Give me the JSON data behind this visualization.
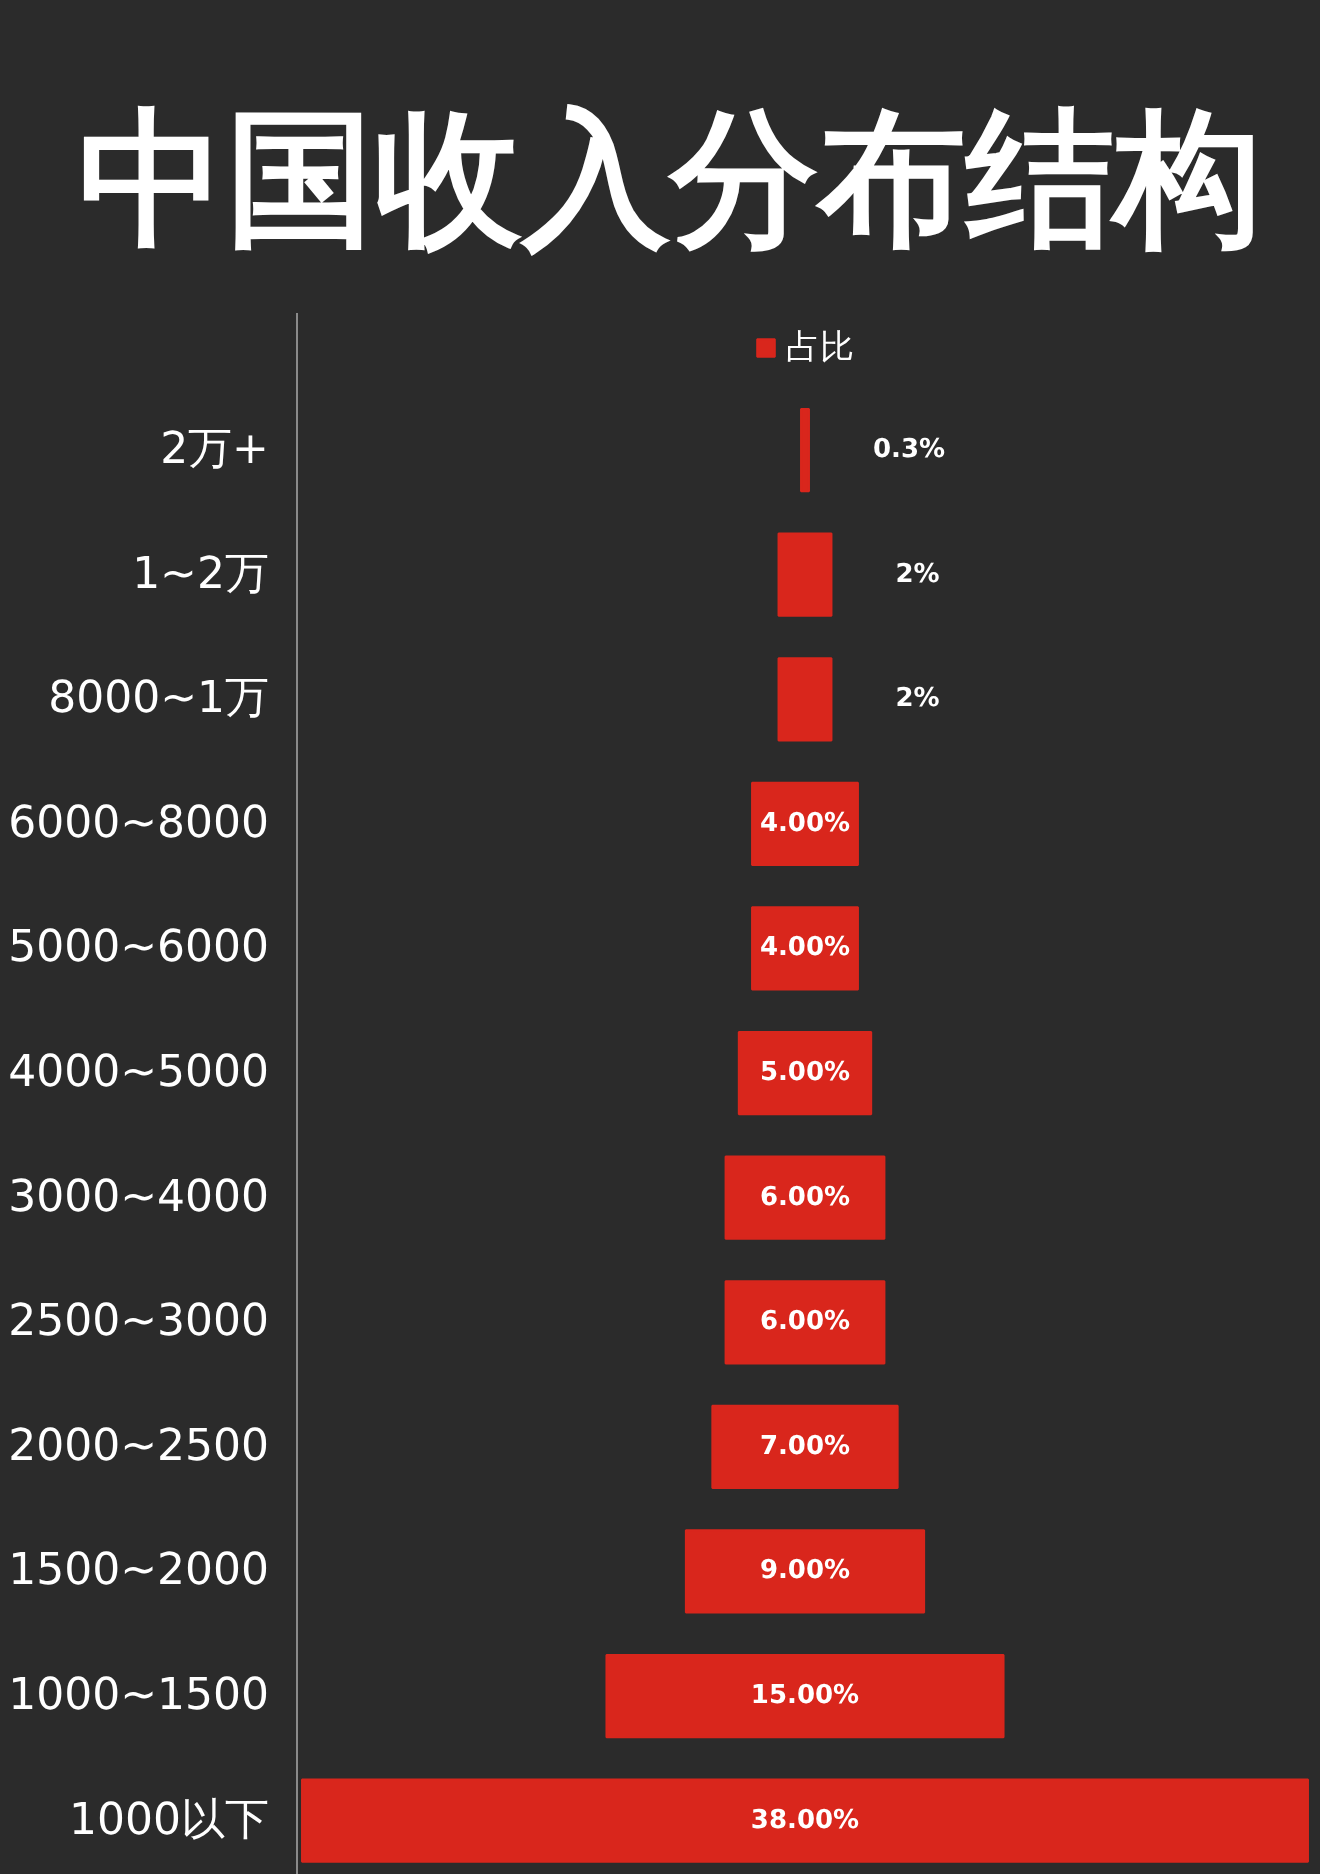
{
  "chart_data": {
    "type": "other",
    "title": "中国收入分布结构",
    "categories": [
      "2万+",
      "1~2万",
      "8000~1万",
      "6000~8000",
      "5000~6000",
      "4000~5000",
      "3000~4000",
      "2500~3000",
      "2000~2500",
      "1500~2000",
      "1000~1500",
      "1000以下"
    ],
    "series": [
      {
        "name": "占比",
        "color": "#d9261c",
        "values": [
          0.3,
          2,
          2,
          4,
          4,
          5,
          6,
          6,
          7,
          9,
          15,
          38
        ],
        "value_labels": [
          "0.3%",
          "2%",
          "2%",
          "4.00%",
          "4.00%",
          "5.00%",
          "6.00%",
          "6.00%",
          "7.00%",
          "9.00%",
          "15.00%",
          "38.00%"
        ]
      }
    ],
    "legend": "top"
  }
}
